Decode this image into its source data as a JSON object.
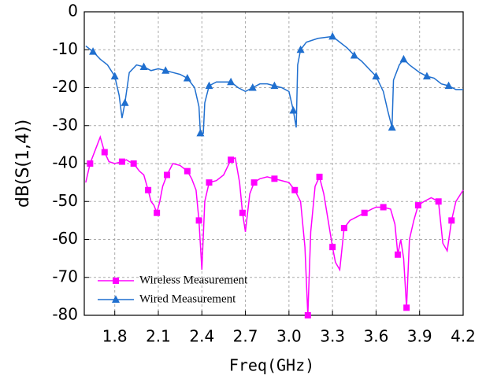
{
  "chart_data": {
    "type": "line",
    "xlabel": "Freq(GHz)",
    "ylabel": "dB(S(1,4))",
    "xlim": [
      1.59,
      4.2
    ],
    "xticks": [
      1.8,
      2.1,
      2.4,
      2.7,
      {
        "value": 3.0,
        "label": "3.0"
      },
      3.3,
      3.6,
      3.9,
      4.2
    ],
    "ylim": [
      -80,
      0
    ],
    "yticks": [
      -80,
      -70,
      -60,
      -50,
      -40,
      -30,
      -20,
      -10,
      0
    ],
    "grid": true,
    "legend": "lower left",
    "series": [
      {
        "name": "Wireless Measurement",
        "color": "#ff00ff",
        "marker": "square",
        "x": [
          1.6,
          1.63,
          1.67,
          1.7,
          1.73,
          1.76,
          1.8,
          1.85,
          1.88,
          1.9,
          1.93,
          1.97,
          2.0,
          2.03,
          2.05,
          2.07,
          2.09,
          2.11,
          2.13,
          2.16,
          2.2,
          2.25,
          2.3,
          2.33,
          2.36,
          2.38,
          2.4,
          2.42,
          2.45,
          2.5,
          2.55,
          2.6,
          2.63,
          2.66,
          2.68,
          2.7,
          2.73,
          2.76,
          2.8,
          2.85,
          2.9,
          2.95,
          3.0,
          3.04,
          3.08,
          3.11,
          3.13,
          3.15,
          3.18,
          3.21,
          3.24,
          3.27,
          3.3,
          3.32,
          3.35,
          3.38,
          3.42,
          3.47,
          3.52,
          3.57,
          3.6,
          3.65,
          3.7,
          3.73,
          3.75,
          3.77,
          3.79,
          3.81,
          3.83,
          3.86,
          3.89,
          3.93,
          3.98,
          4.03,
          4.06,
          4.09,
          4.12,
          4.15,
          4.2
        ],
        "values": [
          -45,
          -40,
          -36,
          -33,
          -37,
          -39.5,
          -40,
          -39.5,
          -39,
          -39.5,
          -40,
          -42,
          -43,
          -47,
          -50,
          -51,
          -53,
          -50,
          -46,
          -43,
          -40,
          -40.5,
          -42,
          -44,
          -47,
          -55,
          -68,
          -50,
          -45,
          -44.5,
          -43,
          -39,
          -38.5,
          -45,
          -53,
          -58,
          -48,
          -45,
          -44,
          -43.5,
          -44,
          -44.5,
          -45,
          -47,
          -50,
          -62,
          -80,
          -58,
          -46,
          -43.5,
          -48,
          -55,
          -62,
          -66,
          -68,
          -57,
          -55,
          -54,
          -53,
          -52,
          -51.5,
          -51.5,
          -52,
          -56,
          -64,
          -60,
          -65,
          -78,
          -60,
          -55,
          -51,
          -50,
          -49,
          -50,
          -61,
          -63,
          -55,
          -50,
          -47
        ]
      },
      {
        "name": "Wired Measurement",
        "color": "#1f6fcf",
        "marker": "triangle",
        "x": [
          1.6,
          1.65,
          1.7,
          1.75,
          1.8,
          1.83,
          1.85,
          1.87,
          1.9,
          1.95,
          2.0,
          2.05,
          2.1,
          2.15,
          2.2,
          2.25,
          2.3,
          2.35,
          2.38,
          2.39,
          2.41,
          2.42,
          2.45,
          2.5,
          2.55,
          2.6,
          2.65,
          2.7,
          2.75,
          2.8,
          2.85,
          2.9,
          2.95,
          3.0,
          3.03,
          3.05,
          3.06,
          3.08,
          3.12,
          3.2,
          3.3,
          3.35,
          3.4,
          3.45,
          3.5,
          3.55,
          3.6,
          3.65,
          3.68,
          3.71,
          3.72,
          3.76,
          3.79,
          3.83,
          3.9,
          3.95,
          4.0,
          4.05,
          4.1,
          4.15,
          4.2
        ],
        "values": [
          -9,
          -10.5,
          -12.5,
          -14,
          -17,
          -22,
          -28,
          -24,
          -16,
          -14,
          -14.5,
          -15.5,
          -15,
          -15.5,
          -16,
          -16.5,
          -17.5,
          -20,
          -25,
          -32,
          -32,
          -24,
          -19.5,
          -18.5,
          -18.5,
          -18.5,
          -20,
          -21,
          -20,
          -19,
          -19,
          -19.5,
          -20,
          -21,
          -26,
          -30.5,
          -14,
          -10,
          -8,
          -7,
          -6.5,
          -8,
          -9.5,
          -11.5,
          -13,
          -15,
          -17,
          -21,
          -26,
          -30.5,
          -18,
          -14,
          -12.5,
          -14,
          -16,
          -17,
          -17.5,
          -19,
          -19.5,
          -20.5,
          -20.5
        ]
      }
    ]
  }
}
